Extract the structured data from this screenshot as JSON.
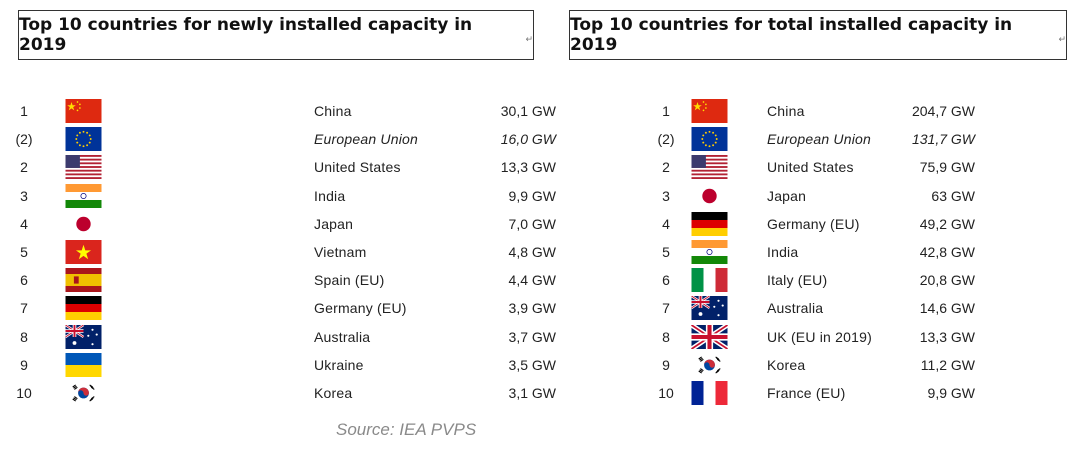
{
  "left": {
    "title": "Top 10 countries for newly installed capacity in 2019",
    "title_mark": "↵",
    "rows": [
      {
        "rank": "1",
        "flag": "china-flag-icon",
        "name": "China",
        "value": "30,1 GW",
        "italic": false
      },
      {
        "rank": "(2)",
        "flag": "eu-flag-icon",
        "name": "European Union",
        "value": "16,0 GW",
        "italic": true
      },
      {
        "rank": "2",
        "flag": "us-flag-icon",
        "name": "United States",
        "value": "13,3 GW",
        "italic": false
      },
      {
        "rank": "3",
        "flag": "india-flag-icon",
        "name": "India",
        "value": "9,9 GW",
        "italic": false
      },
      {
        "rank": "4",
        "flag": "japan-flag-icon",
        "name": "Japan",
        "value": "7,0 GW",
        "italic": false
      },
      {
        "rank": "5",
        "flag": "vietnam-flag-icon",
        "name": "Vietnam",
        "value": "4,8 GW",
        "italic": false
      },
      {
        "rank": "6",
        "flag": "spain-flag-icon",
        "name": "Spain (EU)",
        "value": "4,4 GW",
        "italic": false
      },
      {
        "rank": "7",
        "flag": "germany-flag-icon",
        "name": "Germany (EU)",
        "value": "3,9 GW",
        "italic": false
      },
      {
        "rank": "8",
        "flag": "australia-flag-icon",
        "name": "Australia",
        "value": "3,7 GW",
        "italic": false
      },
      {
        "rank": "9",
        "flag": "ukraine-flag-icon",
        "name": "Ukraine",
        "value": "3,5 GW",
        "italic": false
      },
      {
        "rank": "10",
        "flag": "korea-flag-icon",
        "name": "Korea",
        "value": "3,1 GW",
        "italic": false
      }
    ]
  },
  "right": {
    "title": "Top 10 countries for total installed capacity in 2019",
    "title_mark": "↵",
    "rows": [
      {
        "rank": "1",
        "flag": "china-flag-icon",
        "name": "China",
        "value": "204,7 GW",
        "italic": false
      },
      {
        "rank": "(2)",
        "flag": "eu-flag-icon",
        "name": "European Union",
        "value": "131,7 GW",
        "italic": true
      },
      {
        "rank": "2",
        "flag": "us-flag-icon",
        "name": "United States",
        "value": "75,9 GW",
        "italic": false
      },
      {
        "rank": "3",
        "flag": "japan-flag-icon",
        "name": "Japan",
        "value": "63 GW",
        "italic": false
      },
      {
        "rank": "4",
        "flag": "germany-flag-icon",
        "name": "Germany (EU)",
        "value": "49,2 GW",
        "italic": false
      },
      {
        "rank": "5",
        "flag": "india-flag-icon",
        "name": "India",
        "value": "42,8 GW",
        "italic": false
      },
      {
        "rank": "6",
        "flag": "italy-flag-icon",
        "name": "Italy (EU)",
        "value": "20,8 GW",
        "italic": false
      },
      {
        "rank": "7",
        "flag": "australia-flag-icon",
        "name": "Australia",
        "value": "14,6 GW",
        "italic": false
      },
      {
        "rank": "8",
        "flag": "uk-flag-icon",
        "name": "UK (EU in 2019)",
        "value": "13,3 GW",
        "italic": false
      },
      {
        "rank": "9",
        "flag": "korea-flag-icon",
        "name": "Korea",
        "value": "11,2 GW",
        "italic": false
      },
      {
        "rank": "10",
        "flag": "france-flag-icon",
        "name": "France (EU)",
        "value": "9,9 GW",
        "italic": false
      }
    ]
  },
  "source": "Source: IEA PVPS"
}
